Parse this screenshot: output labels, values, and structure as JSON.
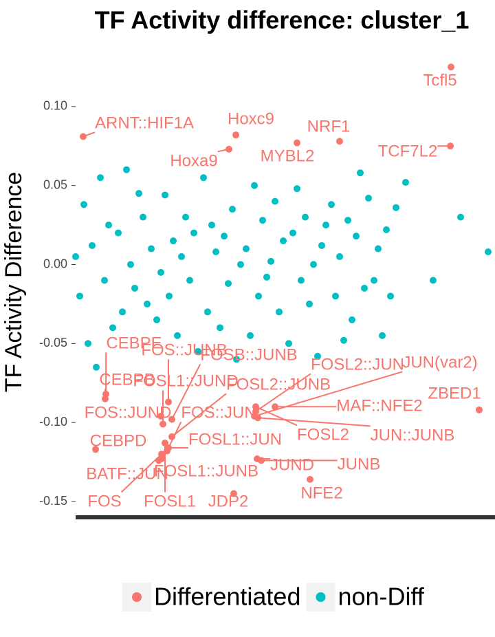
{
  "chart_data": {
    "type": "scatter",
    "title": "TF Activity difference: cluster_1",
    "y_label": "TF Activity Difference",
    "xlim": [
      0,
      610
    ],
    "ylim": [
      -0.16,
      0.15
    ],
    "yticks": [
      {
        "value": -0.15,
        "label": "-0.15"
      },
      {
        "value": -0.1,
        "label": "-0.10"
      },
      {
        "value": -0.05,
        "label": "-0.05"
      },
      {
        "value": 0,
        "label": "0.00"
      },
      {
        "value": 0.05,
        "label": "0.05"
      },
      {
        "value": 0.1,
        "label": "0.10"
      }
    ],
    "series": [
      {
        "name": "non-Diff",
        "color": "#00BFC4",
        "x": [
          0,
          6,
          12,
          18,
          24,
          30,
          36,
          42,
          48,
          54,
          62,
          68,
          74,
          80,
          86,
          92,
          98,
          104,
          110,
          118,
          124,
          130,
          136,
          142,
          148,
          154,
          160,
          166,
          172,
          178,
          186,
          192,
          198,
          204,
          210,
          216,
          222,
          228,
          234,
          240,
          248,
          254,
          260,
          266,
          272,
          278,
          284,
          290,
          296,
          302,
          310,
          316,
          322,
          328,
          334,
          340,
          346,
          352,
          358,
          364,
          372,
          378,
          384,
          390,
          396,
          402,
          408,
          414,
          420,
          426,
          434,
          440,
          446,
          452,
          458,
          466,
          480,
          520,
          560,
          600
        ],
        "values": [
          0.005,
          -0.02,
          0.038,
          -0.05,
          0.012,
          -0.065,
          0.055,
          -0.01,
          0.025,
          -0.04,
          0.02,
          -0.03,
          0.06,
          0.0,
          -0.015,
          0.045,
          0.03,
          -0.025,
          0.01,
          -0.035,
          -0.005,
          0.044,
          -0.02,
          0.015,
          -0.045,
          0.005,
          0.03,
          -0.01,
          0.02,
          -0.055,
          0.055,
          -0.03,
          0.025,
          0.008,
          -0.04,
          0.018,
          -0.012,
          0.035,
          -0.06,
          0.0,
          0.01,
          -0.045,
          0.05,
          -0.02,
          0.028,
          -0.008,
          0.002,
          0.04,
          -0.03,
          0.015,
          -0.05,
          0.02,
          0.048,
          -0.01,
          0.03,
          -0.025,
          0.0,
          -0.058,
          0.012,
          0.025,
          0.038,
          -0.02,
          0.005,
          -0.048,
          0.028,
          -0.035,
          0.018,
          0.058,
          -0.015,
          0.042,
          -0.01,
          0.01,
          -0.045,
          0.022,
          -0.02,
          0.036,
          0.052,
          -0.01,
          0.03,
          0.008
        ]
      },
      {
        "name": "Differentiated",
        "color": "#F8766D",
        "x": [
          11,
          233,
          223,
          384,
          322,
          546,
          545,
          587,
          44,
          43,
          29,
          124,
          125,
          125,
          130,
          230,
          121,
          135,
          140,
          127,
          140,
          133,
          135,
          262,
          260,
          290,
          262,
          265,
          264,
          270,
          341
        ],
        "values": [
          0.081,
          0.082,
          0.073,
          0.078,
          0.077,
          0.125,
          0.075,
          -0.092,
          -0.082,
          -0.085,
          -0.117,
          -0.096,
          -0.123,
          -0.12,
          -0.113,
          -0.145,
          -0.124,
          -0.087,
          -0.098,
          -0.101,
          -0.109,
          -0.118,
          -0.116,
          -0.093,
          -0.096,
          -0.09,
          -0.09,
          -0.097,
          -0.123,
          -0.124,
          -0.136
        ],
        "point_labels": [
          "ARNT::HIF1A",
          "Hoxc9",
          "Hoxa9",
          "NRF1",
          "MYBL2",
          "Tcfl5",
          "TCF7L2",
          "ZBED1",
          "CEBPE",
          "CEBPB",
          "CEBPD",
          "FOS::JUND",
          "BATF::JUN",
          "FOS",
          "FOSL1",
          "JDP2",
          "FOSL1::JUNB",
          "FOS::JUNB",
          "FOSB::JUNB",
          "FOSL1::JUND",
          "FOSL2::JUNB",
          "FOS::JUN",
          "FOSL1::JUN",
          "FOSL2::JUN",
          "JUN(var2)",
          "MAF::NFE2",
          "FOSL2",
          "JUN::JUNB",
          "JUND",
          "JUNB",
          "NFE2"
        ]
      }
    ]
  }
}
